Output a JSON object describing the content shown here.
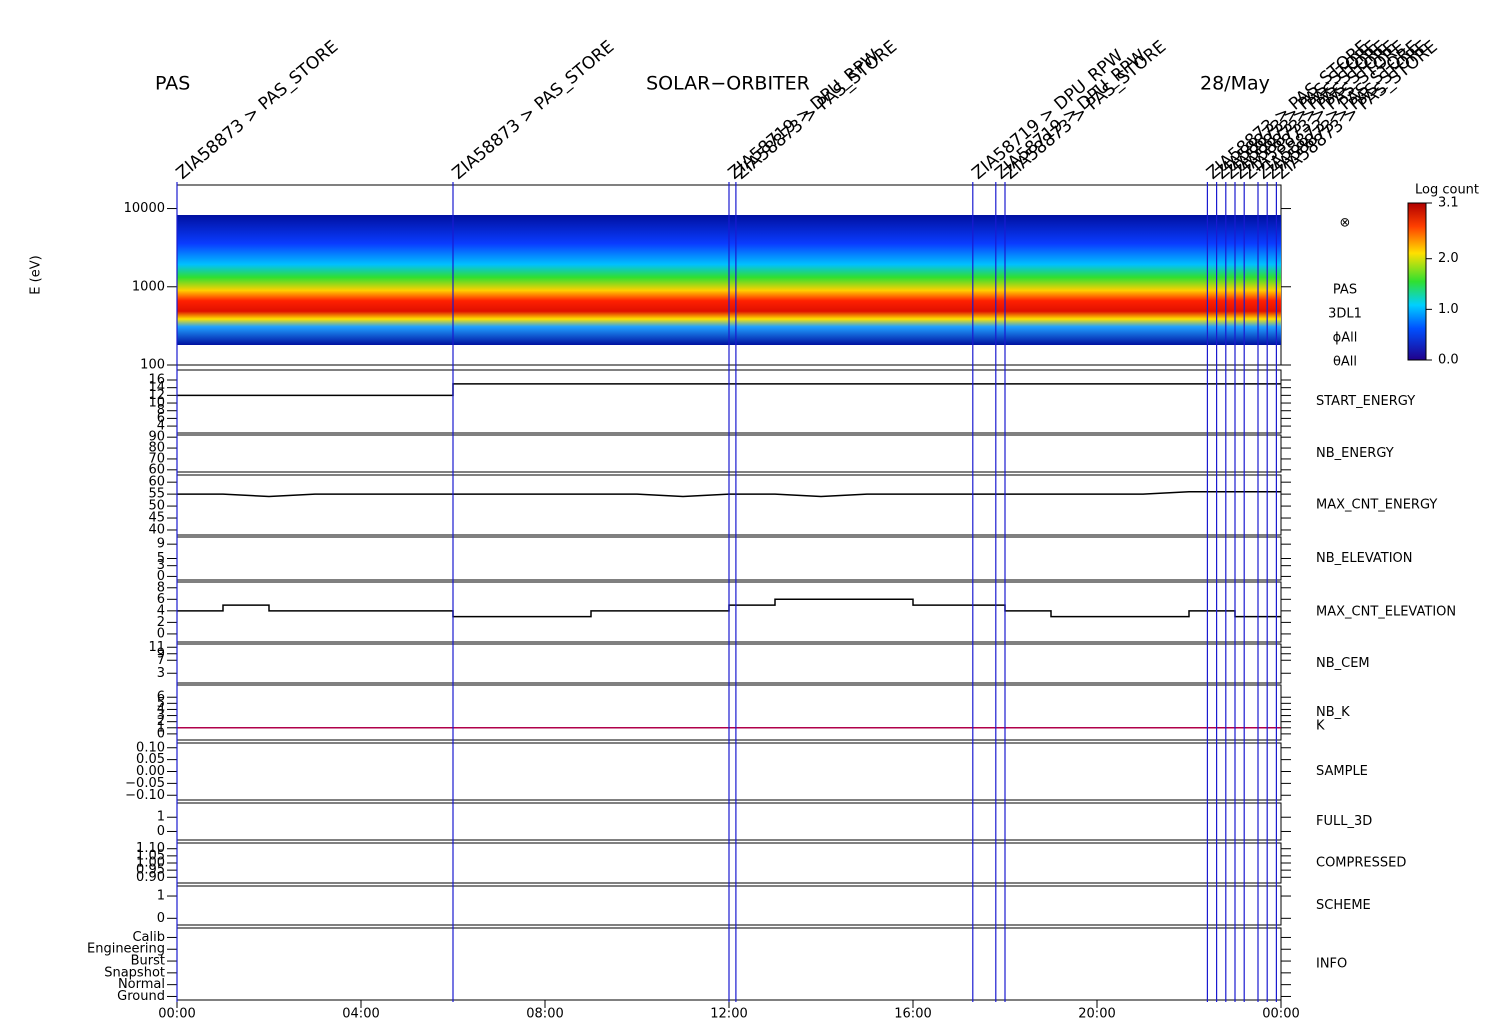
{
  "header": {
    "left": "PAS",
    "center": "SOLAR−ORBITER",
    "right": "28/May"
  },
  "events": [
    {
      "time": 0.0,
      "label": "ZIA58873 > PAS_STORE"
    },
    {
      "time": 6.0,
      "label": "ZIA58873 > PAS_STORE"
    },
    {
      "time": 12.0,
      "label": "ZIA58719 > DPU_RPW"
    },
    {
      "time": 12.15,
      "label": "ZIA58873 > PAS_STORE"
    },
    {
      "time": 17.3,
      "label": "ZIA58719 > DPU_RPW"
    },
    {
      "time": 17.8,
      "label": "ZIA58719 > DPU_RPW"
    },
    {
      "time": 18.0,
      "label": "ZIA58873 > PAS_STORE"
    },
    {
      "time": 22.4,
      "label": "ZIA58873 > PAS_STORE"
    },
    {
      "time": 22.6,
      "label": "ZIA58873 > PAS_STORE"
    },
    {
      "time": 22.8,
      "label": "ZIA58873 > PAS_STORE"
    },
    {
      "time": 23.0,
      "label": "ZIA58873 > PAS_STORE"
    },
    {
      "time": 23.2,
      "label": "ZIA58873 > PAS_STORE"
    },
    {
      "time": 23.5,
      "label": "ZIA58873 > PAS_STORE"
    },
    {
      "time": 23.7,
      "label": "ZIA58873 > PAS_STORE"
    },
    {
      "time": 23.9,
      "label": "ZIA58873 > PAS_STORE"
    }
  ],
  "chart_data": [
    {
      "type": "heatmap",
      "ylabel": "E (eV)",
      "log": true,
      "ylim": [
        100,
        20000
      ],
      "yticks": [
        100,
        1000,
        10000
      ],
      "notes": [
        "⊗",
        "PAS",
        "3DL1",
        "ϕAll",
        "θAll"
      ],
      "colorbar": {
        "title": "Log count",
        "lim": [
          0,
          3.1
        ],
        "ticks": [
          {
            "value": 0,
            "label": "0.0"
          },
          {
            "value": 1,
            "label": "1.0"
          },
          {
            "value": 2,
            "label": "2.0"
          },
          {
            "value": 3.1,
            "label": "3.1"
          }
        ]
      }
    },
    {
      "type": "step",
      "label": "START_ENERGY",
      "label_color": "#000000",
      "ylim": [
        2.2,
        18.6
      ],
      "yticks": [
        4,
        6,
        8,
        10,
        12,
        14,
        16
      ],
      "series": [
        {
          "color": "#000000",
          "x": [
            0,
            6,
            6,
            24
          ],
          "values": [
            12,
            12,
            15,
            15
          ]
        }
      ]
    },
    {
      "type": "none",
      "label": "NB_ENERGY",
      "label_color": "#1a1aa6",
      "ylim": [
        58,
        92
      ],
      "yticks": [
        60,
        70,
        80,
        90
      ]
    },
    {
      "type": "line",
      "label": "MAX_CNT_ENERGY",
      "label_color": "#000000",
      "ylim": [
        37.9,
        63
      ],
      "yticks": [
        40,
        45,
        50,
        55,
        60
      ],
      "series": [
        {
          "color": "#000000",
          "x": [
            0,
            1,
            2,
            3,
            4,
            5,
            6,
            7,
            8,
            9,
            10,
            11,
            12,
            13,
            14,
            15,
            16,
            17,
            18,
            19,
            20,
            21,
            22,
            23,
            24
          ],
          "values": [
            55,
            55,
            54,
            55,
            55,
            55,
            55,
            55,
            55,
            55,
            55,
            54,
            55,
            55,
            54,
            55,
            55,
            55,
            55,
            55,
            55,
            55,
            56,
            56,
            56
          ]
        }
      ]
    },
    {
      "type": "none",
      "label": "NB_ELEVATION",
      "label_color": "#1a1aa6",
      "ylim": [
        -1,
        11
      ],
      "yticks": [
        0,
        3,
        5,
        9
      ]
    },
    {
      "type": "step",
      "label": "MAX_CNT_ELEVATION",
      "label_color": "#000000",
      "ylim": [
        -1.4,
        9
      ],
      "yticks": [
        0,
        2,
        4,
        6,
        8
      ],
      "series": [
        {
          "color": "#000000",
          "x": [
            0,
            1,
            2,
            3,
            4,
            5,
            6,
            7,
            8,
            9,
            10,
            11,
            12,
            13,
            14,
            15,
            16,
            17,
            18,
            19,
            20,
            21,
            22,
            23,
            24
          ],
          "values": [
            4,
            5,
            4,
            4,
            4,
            4,
            3,
            3,
            3,
            4,
            4,
            4,
            5,
            6,
            6,
            6,
            5,
            5,
            4,
            3,
            3,
            3,
            4,
            3,
            3
          ]
        }
      ]
    },
    {
      "type": "none",
      "label": "NB_CEM",
      "label_color": "#1a1aa6",
      "ylim": [
        0,
        12
      ],
      "yticks": [
        3,
        7,
        9,
        11
      ]
    },
    {
      "type": "line",
      "label": "NB_K",
      "label_color": "#cc0000",
      "ylim": [
        -1,
        8
      ],
      "yticks": [
        0,
        1,
        2,
        3,
        4,
        5,
        6
      ],
      "series": [
        {
          "name": "K",
          "color": "#b0004a",
          "x": [
            0,
            24
          ],
          "values": [
            1,
            1
          ]
        }
      ]
    },
    {
      "type": "none",
      "label": "SAMPLE",
      "label_color": "#1a1aa6",
      "ylim": [
        -0.12,
        0.12
      ],
      "yticks": [
        {
          "value": -0.1,
          "label": "−0.10"
        },
        {
          "value": -0.05,
          "label": "−0.05"
        },
        {
          "value": 0,
          "label": "0.00"
        },
        {
          "value": 0.05,
          "label": "0.05"
        },
        {
          "value": 0.1,
          "label": "0.10"
        }
      ]
    },
    {
      "type": "none",
      "label": "FULL_3D",
      "label_color": "#1a1aa6",
      "ylim": [
        -0.6,
        2
      ],
      "yticks": [
        0,
        1
      ]
    },
    {
      "type": "none",
      "label": "COMPRESSED",
      "label_color": "#000000",
      "ylim": [
        0.86,
        1.14
      ],
      "yticks": [
        {
          "value": 0.9,
          "label": "0.90"
        },
        {
          "value": 0.95,
          "label": "0.95"
        },
        {
          "value": 1,
          "label": "1.00"
        },
        {
          "value": 1.05,
          "label": "1.05"
        },
        {
          "value": 1.1,
          "label": "1.10"
        }
      ]
    },
    {
      "type": "none",
      "label": "SCHEME",
      "label_color": "#000000",
      "ylim": [
        -0.3,
        1.45
      ],
      "yticks": [
        0,
        1
      ]
    },
    {
      "type": "none",
      "label": "INFO",
      "label_color": "#000000",
      "ylim": [
        -0.3,
        5.8
      ],
      "yticks": [
        {
          "value": 0,
          "label": "Ground"
        },
        {
          "value": 1,
          "label": "Normal"
        },
        {
          "value": 2,
          "label": "Snapshot"
        },
        {
          "value": 3,
          "label": "Burst"
        },
        {
          "value": 4,
          "label": "Engineering"
        },
        {
          "value": 5,
          "label": "Calib"
        }
      ],
      "xlim": [
        0,
        24
      ],
      "xticks": [
        {
          "value": 0,
          "label": "00:00"
        },
        {
          "value": 4,
          "label": "04:00"
        },
        {
          "value": 8,
          "label": "08:00"
        },
        {
          "value": 12,
          "label": "12:00"
        },
        {
          "value": 16,
          "label": "16:00"
        },
        {
          "value": 20,
          "label": "20:00"
        },
        {
          "value": 24,
          "label": "00:00"
        }
      ]
    }
  ]
}
